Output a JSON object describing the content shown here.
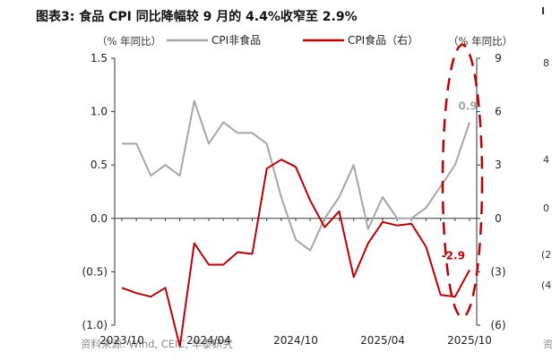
{
  "header": {
    "title": "图表3:  食品 CPI 同比降幅较 9 月的 4.4%收窄至 2.9%"
  },
  "footer": {
    "source": "资料来源: Wind, CEIC, 华泰研究"
  },
  "edge": {
    "labels": [
      "8",
      "4",
      "0",
      "(2",
      "(4"
    ],
    "top_char": "I",
    "footer_char": "资"
  },
  "colors": {
    "nonfood": "#a6a6a6",
    "food": "#c00000",
    "annotation": "#c00000"
  },
  "chart_data": {
    "type": "line",
    "x": [
      "2023/10",
      "2023/11",
      "2023/12",
      "2024/01",
      "2024/02",
      "2024/03",
      "2024/04",
      "2024/05",
      "2024/06",
      "2024/07",
      "2024/08",
      "2024/09",
      "2024/10",
      "2024/11",
      "2024/12",
      "2025/01",
      "2025/02",
      "2025/03",
      "2025/04",
      "2025/05",
      "2025/06",
      "2025/07",
      "2025/08",
      "2025/09",
      "2025/10"
    ],
    "x_tick_labels": [
      "2023/10",
      "2024/04",
      "2024/10",
      "2025/04",
      "2025/10"
    ],
    "left_axis": {
      "label": "（% 年同比）",
      "ylim": [
        -1.0,
        1.5
      ],
      "ticks": [
        "(1.0)",
        "(0.5)",
        "0.0",
        "0.5",
        "1.0",
        "1.5"
      ],
      "tick_values": [
        -1.0,
        -0.5,
        0.0,
        0.5,
        1.0,
        1.5
      ]
    },
    "right_axis": {
      "label": "（% 年同比）",
      "ylim": [
        -6,
        9
      ],
      "ticks": [
        "(6)",
        "(3)",
        "0",
        "3",
        "6",
        "9"
      ],
      "tick_values": [
        -6,
        -3,
        0,
        3,
        6,
        9
      ]
    },
    "series": [
      {
        "name": "CPI非食品",
        "axis": "left",
        "color": "#a6a6a6",
        "values": [
          0.7,
          0.7,
          0.4,
          0.5,
          0.4,
          1.1,
          0.7,
          0.9,
          0.8,
          0.8,
          0.7,
          0.2,
          -0.2,
          -0.3,
          0.0,
          0.2,
          0.5,
          -0.1,
          0.2,
          0.0,
          0.0,
          0.1,
          0.3,
          0.5,
          0.9
        ]
      },
      {
        "name": "CPI食品（右）",
        "axis": "right",
        "color": "#c00000",
        "values": [
          -3.9,
          -4.2,
          -4.4,
          -3.9,
          -7.2,
          -1.4,
          -2.6,
          -2.6,
          -1.9,
          -2.0,
          2.8,
          3.3,
          2.9,
          1.0,
          -0.5,
          0.4,
          -3.3,
          -1.4,
          -0.2,
          -0.4,
          -0.3,
          -1.6,
          -4.3,
          -4.4,
          -2.9
        ]
      }
    ],
    "annotations": [
      {
        "text": "0.9",
        "series": "CPI非食品"
      },
      {
        "text": "-2.9",
        "series": "CPI食品（右）"
      }
    ],
    "legend_position": "top",
    "grid": false
  }
}
